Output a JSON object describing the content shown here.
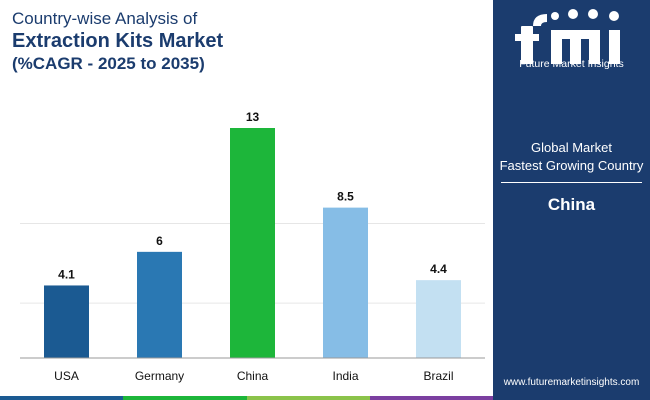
{
  "title": {
    "line1": "Country-wise Analysis of",
    "line2": "Extraction Kits Market",
    "line3": "(%CAGR - 2025 to 2035)"
  },
  "chart_data": {
    "type": "bar",
    "categories": [
      "USA",
      "Germany",
      "China",
      "India",
      "Brazil"
    ],
    "values": [
      4.1,
      6,
      13,
      8.5,
      4.4
    ],
    "value_labels": [
      "4.1",
      "6",
      "13",
      "8.5",
      "4.4"
    ],
    "colors": [
      "#1b5a92",
      "#2a78b3",
      "#1db63a",
      "#86bde6",
      "#c3e0f2"
    ],
    "ylim": [
      0,
      13
    ],
    "grid": true,
    "title": "Country-wise Analysis of Extraction Kits Market (%CAGR - 2025 to 2035)",
    "xlabel": "",
    "ylabel": ""
  },
  "panel": {
    "brand": "Future Market Insights",
    "line1": "Global Market",
    "line2": "Fastest Growing Country",
    "country": "China",
    "url": "www.futuremarketinsights.com"
  },
  "colors": {
    "navy": "#1b3c6e",
    "strip": [
      "#1b5a92",
      "#1db63a",
      "#8bc34a",
      "#7b3fa0"
    ]
  }
}
